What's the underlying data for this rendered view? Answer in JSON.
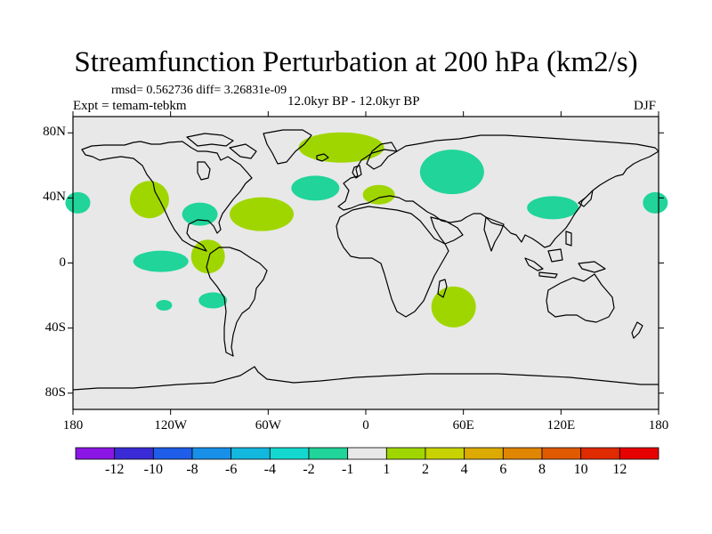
{
  "title": "Streamfunction Perturbation at 200 hPa (km2/s)",
  "stats": "rmsd= 0.562736 diff= 3.26831e-09",
  "experiment": "Expt = temam-tebkm",
  "period": "12.0kyr BP - 12.0kyr BP",
  "season": "DJF",
  "map": {
    "projection": "cylindrical equidistant",
    "lon_range": [
      -180,
      180
    ],
    "lat_range": [
      -90,
      90
    ],
    "background_color": "#e8e8e8",
    "lat_ticks": [
      {
        "value": 80,
        "label": "80N"
      },
      {
        "value": 40,
        "label": "40N"
      },
      {
        "value": 0,
        "label": "0"
      },
      {
        "value": -40,
        "label": "40S"
      },
      {
        "value": -80,
        "label": "80S"
      }
    ],
    "lon_ticks": [
      {
        "value": -180,
        "label": "180"
      },
      {
        "value": -120,
        "label": "120W"
      },
      {
        "value": -60,
        "label": "60W"
      },
      {
        "value": 0,
        "label": "0"
      },
      {
        "value": 60,
        "label": "60E"
      },
      {
        "value": 120,
        "label": "120E"
      },
      {
        "value": 180,
        "label": "180"
      }
    ]
  },
  "anomalies": [
    {
      "name": "north-atlantic-high",
      "lon": -15,
      "lat": 71,
      "level": "1 to 2",
      "color": "#a0d600"
    },
    {
      "name": "eurasia-low",
      "lon": 53,
      "lat": 56,
      "level": "-2 to -1",
      "color": "#20d49a"
    },
    {
      "name": "mediterranean-high",
      "lon": 8,
      "lat": 42,
      "level": "1 to 2",
      "color": "#a0d600"
    },
    {
      "name": "north-atlantic-low",
      "lon": -31,
      "lat": 46,
      "level": "-2 to -1",
      "color": "#20d49a"
    },
    {
      "name": "northeast-pacific-high",
      "lon": -133,
      "lat": 39,
      "level": "1 to 2",
      "color": "#a0d600"
    },
    {
      "name": "north-america-low",
      "lon": -102,
      "lat": 30,
      "level": "-2 to -1",
      "color": "#20d49a"
    },
    {
      "name": "central-atlantic-high",
      "lon": -64,
      "lat": 30,
      "level": "1 to 2",
      "color": "#a0d600"
    },
    {
      "name": "west-pacific-low",
      "lon": 115,
      "lat": 34,
      "level": "-2 to -1",
      "color": "#20d49a"
    },
    {
      "name": "dateline-low-east",
      "lon": 178,
      "lat": 37,
      "level": "-2 to -1",
      "color": "#20d49a"
    },
    {
      "name": "dateline-low-west",
      "lon": -177,
      "lat": 37,
      "level": "-2 to -1",
      "color": "#20d49a"
    },
    {
      "name": "tropical-pacific-low",
      "lon": -126,
      "lat": 1,
      "level": "-2 to -1",
      "color": "#20d49a"
    },
    {
      "name": "central-america-high",
      "lon": -97,
      "lat": 4,
      "level": "1 to 2",
      "color": "#a0d600"
    },
    {
      "name": "south-pacific-low-small",
      "lon": -124,
      "lat": -26,
      "level": "-2 to -1",
      "color": "#20d49a"
    },
    {
      "name": "south-pacific-low",
      "lon": -94,
      "lat": -23,
      "level": "-2 to -1",
      "color": "#20d49a"
    },
    {
      "name": "madagascar-high",
      "lon": 54,
      "lat": -27,
      "level": "1 to 2",
      "color": "#a0d600"
    }
  ],
  "colorbar": {
    "levels": [
      "-12",
      "-10",
      "-8",
      "-6",
      "-4",
      "-2",
      "-1",
      "1",
      "2",
      "4",
      "6",
      "8",
      "10",
      "12"
    ],
    "colors": [
      "#8b16e6",
      "#3b2bd6",
      "#1f5ee8",
      "#1890e8",
      "#12b8de",
      "#14d8cf",
      "#20d49a",
      "#e8e8e8",
      "#a0d600",
      "#c8d200",
      "#dcaa00",
      "#e08600",
      "#e05a00",
      "#e02a00",
      "#e60000"
    ]
  }
}
